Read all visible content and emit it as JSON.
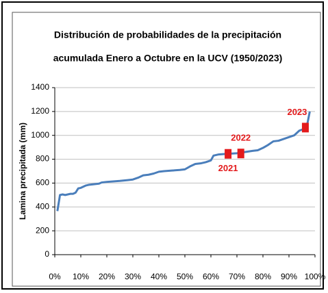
{
  "chart_data": {
    "type": "line",
    "title": [
      "Distribución de probabilidades de la precipitación",
      "acumulada Enero a Octubre en la UCV (1950/2023)"
    ],
    "ylabel": "Lamina precipitada (mm)",
    "series": [
      {
        "color": "#4a7ebb",
        "x": [
          1,
          2,
          3,
          4,
          5,
          6,
          7,
          8,
          9,
          10,
          11,
          12,
          13,
          15,
          17,
          18,
          20,
          25,
          28,
          30,
          32,
          34,
          36,
          38,
          40,
          42,
          45,
          48,
          50,
          52,
          54,
          56,
          58,
          60,
          61,
          63,
          66,
          70,
          73,
          76,
          78,
          80,
          82,
          84,
          86,
          88,
          90,
          92,
          93,
          94,
          96,
          97,
          98
        ],
        "values": [
          365,
          500,
          505,
          500,
          505,
          510,
          510,
          520,
          555,
          560,
          570,
          580,
          585,
          590,
          595,
          605,
          610,
          618,
          625,
          630,
          645,
          665,
          670,
          680,
          695,
          700,
          705,
          710,
          715,
          740,
          760,
          765,
          775,
          790,
          830,
          840,
          845,
          850,
          860,
          870,
          875,
          895,
          920,
          950,
          955,
          970,
          985,
          1000,
          1020,
          1040,
          1055,
          1090,
          1200
        ]
      }
    ],
    "annotations": [
      {
        "x": 66.6,
        "y": 845,
        "label": "2021"
      },
      {
        "x": 71.5,
        "y": 848,
        "label": "2022"
      },
      {
        "x": 96.3,
        "y": 1065,
        "label": "2023"
      }
    ],
    "annotation_color": "#e31a1c",
    "xlim": [
      0,
      100
    ],
    "xticks": [
      {
        "value": 0,
        "label": "0%"
      },
      {
        "value": 10,
        "label": "10%"
      },
      {
        "value": 20,
        "label": "20%"
      },
      {
        "value": 30,
        "label": "30%"
      },
      {
        "value": 40,
        "label": "40%"
      },
      {
        "value": 50,
        "label": "50%"
      },
      {
        "value": 60,
        "label": "60%"
      },
      {
        "value": 70,
        "label": "70%"
      },
      {
        "value": 80,
        "label": "80%"
      },
      {
        "value": 90,
        "label": "90%"
      },
      {
        "value": 100,
        "label": "100%"
      }
    ],
    "ylim": [
      0,
      1400
    ],
    "yticks": [
      0,
      200,
      400,
      600,
      800,
      1000,
      1200,
      1400
    ],
    "grid": true
  }
}
